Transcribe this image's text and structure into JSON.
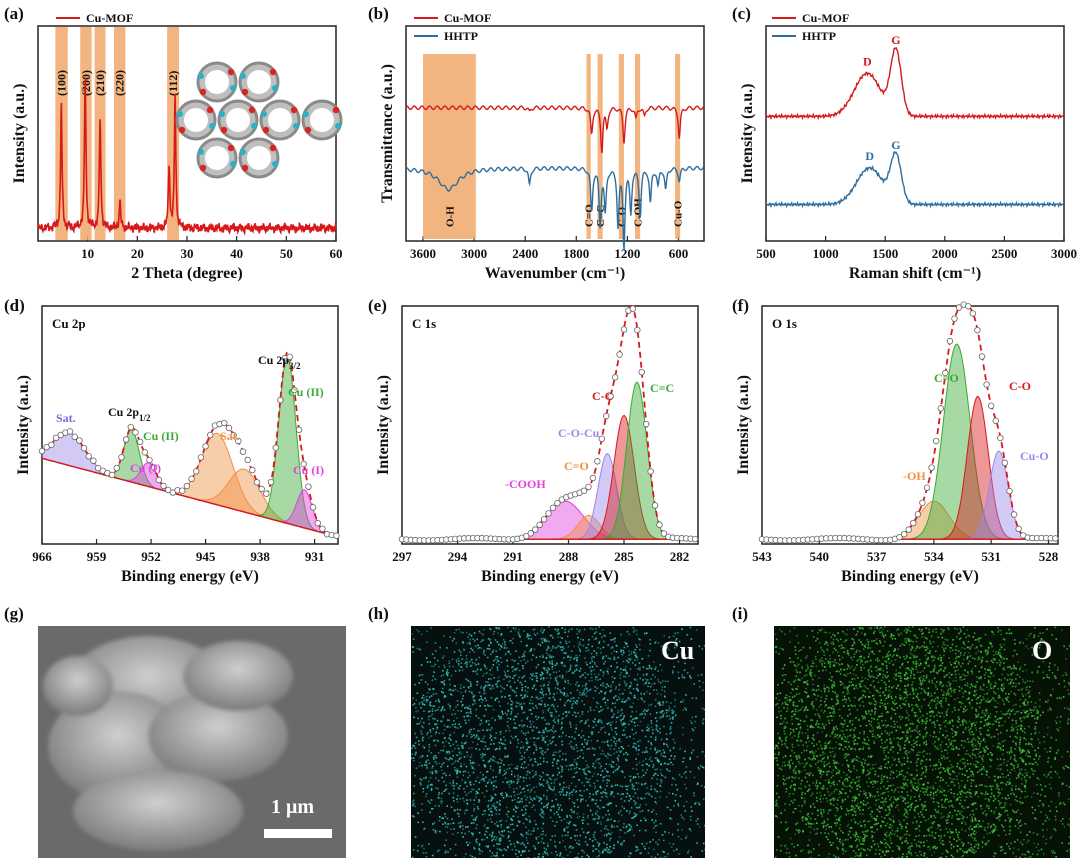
{
  "panel_labels": [
    "(a)",
    "(b)",
    "(c)",
    "(d)",
    "(e)",
    "(f)",
    "(g)",
    "(h)",
    "(i)"
  ],
  "colors": {
    "mof": "#d7191c",
    "hhtp": "#2e6e9e",
    "band": "#f0a868",
    "fit": "#d7191c",
    "open": "#ffffff"
  },
  "chart_data": [
    {
      "id": "a",
      "type": "line",
      "title": "",
      "xlabel": "2 Theta (degree)",
      "ylabel": "Intensity (a.u.)",
      "xlim": [
        0,
        60
      ],
      "xticks": [
        10,
        20,
        30,
        40,
        50,
        60
      ],
      "legend": [
        "Cu-MOF"
      ],
      "series": [
        {
          "name": "Cu-MOF",
          "color": "#d7191c",
          "peaks": [
            [
              4.7,
              0.58
            ],
            [
              9.5,
              0.72
            ],
            [
              12.5,
              0.52
            ],
            [
              16.5,
              0.13
            ],
            [
              26.4,
              0.3
            ],
            [
              27.6,
              0.62
            ]
          ],
          "baseline": 0.06
        }
      ],
      "bands": [
        [
          3.5,
          6.0
        ],
        [
          8.5,
          10.8
        ],
        [
          11.4,
          13.6
        ],
        [
          15.3,
          17.6
        ],
        [
          26.0,
          28.4
        ]
      ],
      "band_labels": [
        "(100)",
        "(200)",
        "(210)",
        "(220)",
        "(112)"
      ],
      "inset": "crystal-structure"
    },
    {
      "id": "b",
      "type": "line",
      "xlabel": "Wavenumber (cm⁻¹)",
      "ylabel": "Transmittance (a.u.)",
      "xlim": [
        3800,
        300
      ],
      "xticks": [
        3600,
        3000,
        2400,
        1800,
        1200,
        600
      ],
      "legend": [
        "Cu-MOF",
        "HHTP"
      ],
      "bands": [
        [
          3600,
          2980
        ],
        [
          1680,
          1630
        ],
        [
          1550,
          1490
        ],
        [
          1300,
          1240
        ],
        [
          1110,
          1050
        ],
        [
          640,
          580
        ]
      ],
      "band_labels": [
        "O-H",
        "C=O",
        "C=C",
        "C-O",
        "C-OH",
        "Cu-O"
      ],
      "series": [
        {
          "name": "Cu-MOF",
          "color": "#d7191c",
          "offset": 0.62,
          "dips": [
            [
              2350,
              0.02
            ],
            [
              1620,
              0.12
            ],
            [
              1500,
              0.2
            ],
            [
              1440,
              0.09
            ],
            [
              1240,
              0.16
            ],
            [
              1100,
              0.05
            ],
            [
              1000,
              0.04
            ],
            [
              590,
              0.14
            ]
          ]
        },
        {
          "name": "HHTP",
          "color": "#2e6e9e",
          "offset": 0.34,
          "dips": [
            [
              3300,
              0.1
            ],
            [
              2350,
              0.08
            ],
            [
              1620,
              0.2
            ],
            [
              1520,
              0.26
            ],
            [
              1460,
              0.2
            ],
            [
              1310,
              0.26
            ],
            [
              1240,
              0.36
            ],
            [
              1160,
              0.2
            ],
            [
              1050,
              0.22
            ],
            [
              930,
              0.16
            ],
            [
              840,
              0.08
            ],
            [
              750,
              0.1
            ],
            [
              590,
              0.06
            ]
          ]
        }
      ]
    },
    {
      "id": "c",
      "type": "line",
      "xlabel": "Raman shift (cm⁻¹)",
      "ylabel": "Intensity (a.u.)",
      "xlim": [
        500,
        3000
      ],
      "xticks": [
        500,
        1000,
        1500,
        2000,
        2500,
        3000
      ],
      "legend": [
        "Cu-MOF",
        "HHTP"
      ],
      "series": [
        {
          "name": "Cu-MOF",
          "color": "#d7191c",
          "baseline": 0.58,
          "D": [
            1350,
            0.2
          ],
          "G": [
            1590,
            0.3
          ],
          "labels": [
            "D",
            "G"
          ]
        },
        {
          "name": "HHTP",
          "color": "#2e6e9e",
          "baseline": 0.17,
          "D": [
            1370,
            0.17
          ],
          "G": [
            1590,
            0.22
          ],
          "labels": [
            "D",
            "G"
          ]
        }
      ]
    },
    {
      "id": "d",
      "type": "line",
      "title": "Cu 2p",
      "xlabel": "Binding energy (eV)",
      "ylabel": "Intensity (a.u.)",
      "xlim": [
        966,
        928
      ],
      "xticks": [
        966,
        959,
        952,
        945,
        938,
        931
      ],
      "components": [
        {
          "label": "Sat.",
          "color": "#9b87e8",
          "center": 962.5,
          "height": 0.14,
          "width": 2.0
        },
        {
          "label": "Cu (II)",
          "color": "#3aaa35",
          "center": 954.5,
          "height": 0.22,
          "width": 1.0
        },
        {
          "label": "Cu (I)",
          "color": "#e040e0",
          "center": 952.3,
          "height": 0.1,
          "width": 1.0
        },
        {
          "label": "Sat.",
          "color": "#f09040",
          "center": 943.5,
          "height": 0.3,
          "width": 2.0
        },
        {
          "label": "Cu (I)",
          "color": "#f09040",
          "center": 940.0,
          "height": 0.18,
          "width": 2.0
        },
        {
          "label": "Cu (II)",
          "color": "#3aaa35",
          "center": 934.5,
          "height": 0.7,
          "width": 1.1
        },
        {
          "label": "Cu (I)",
          "color": "#e040e0",
          "center": 932.3,
          "height": 0.16,
          "width": 1.0
        }
      ],
      "annotations": [
        "Sat.",
        "Cu 2p1/2",
        "Cu (II)",
        "Cu (I)",
        "Sat.",
        "Cu 2p3/2",
        "Cu (II)",
        "Cu (I)"
      ]
    },
    {
      "id": "e",
      "type": "line",
      "title": "C 1s",
      "xlabel": "Binding energy (eV)",
      "ylabel": "Intensity (a.u.)",
      "xlim": [
        297,
        281
      ],
      "xticks": [
        297,
        294,
        291,
        288,
        285,
        282
      ],
      "components": [
        {
          "label": "-COOH",
          "color": "#e040e0",
          "center": 288.2,
          "height": 0.16,
          "width": 1.0
        },
        {
          "label": "C=O",
          "color": "#f09040",
          "center": 286.9,
          "height": 0.1,
          "width": 0.6
        },
        {
          "label": "C-O-Cu",
          "color": "#9b87e8",
          "center": 285.9,
          "height": 0.36,
          "width": 0.5
        },
        {
          "label": "C-C",
          "color": "#d7191c",
          "center": 285.0,
          "height": 0.52,
          "width": 0.55
        },
        {
          "label": "C=C",
          "color": "#3aaa35",
          "center": 284.3,
          "height": 0.66,
          "width": 0.55
        }
      ]
    },
    {
      "id": "f",
      "type": "line",
      "title": "O 1s",
      "xlabel": "Binding energy (eV)",
      "ylabel": "Intensity (a.u.)",
      "xlim": [
        543,
        527.5
      ],
      "xticks": [
        543,
        540,
        537,
        534,
        531,
        528
      ],
      "components": [
        {
          "label": "-OH",
          "color": "#f09040",
          "center": 534.0,
          "height": 0.16,
          "width": 0.8
        },
        {
          "label": "C=O",
          "color": "#3aaa35",
          "center": 532.8,
          "height": 0.82,
          "width": 0.7
        },
        {
          "label": "C-O",
          "color": "#d7191c",
          "center": 531.7,
          "height": 0.6,
          "width": 0.55
        },
        {
          "label": "Cu-O",
          "color": "#9b87e8",
          "center": 530.6,
          "height": 0.37,
          "width": 0.5
        }
      ]
    }
  ],
  "images": {
    "sem": {
      "scale_text": "1 μm"
    },
    "map_cu": {
      "label": "Cu"
    },
    "map_o": {
      "label": "O"
    }
  }
}
